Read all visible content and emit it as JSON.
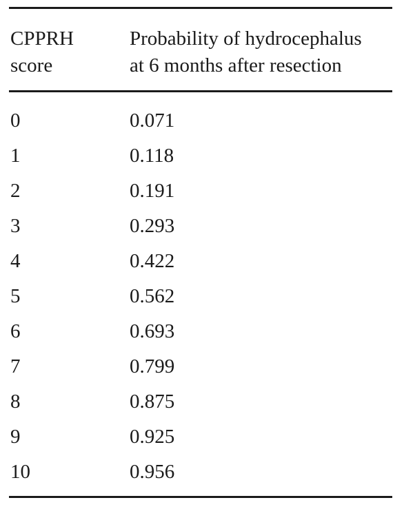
{
  "table": {
    "headers": {
      "col1_line1": "CPPRH",
      "col1_line2": "score",
      "col2_line1": "Probability of hydrocephalus",
      "col2_line2": "at 6 months after resection"
    },
    "rows": [
      {
        "score": "0",
        "probability": "0.071"
      },
      {
        "score": "1",
        "probability": "0.118"
      },
      {
        "score": "2",
        "probability": "0.191"
      },
      {
        "score": "3",
        "probability": "0.293"
      },
      {
        "score": "4",
        "probability": "0.422"
      },
      {
        "score": "5",
        "probability": "0.562"
      },
      {
        "score": "6",
        "probability": "0.693"
      },
      {
        "score": "7",
        "probability": "0.799"
      },
      {
        "score": "8",
        "probability": "0.875"
      },
      {
        "score": "9",
        "probability": "0.925"
      },
      {
        "score": "10",
        "probability": "0.956"
      }
    ]
  }
}
